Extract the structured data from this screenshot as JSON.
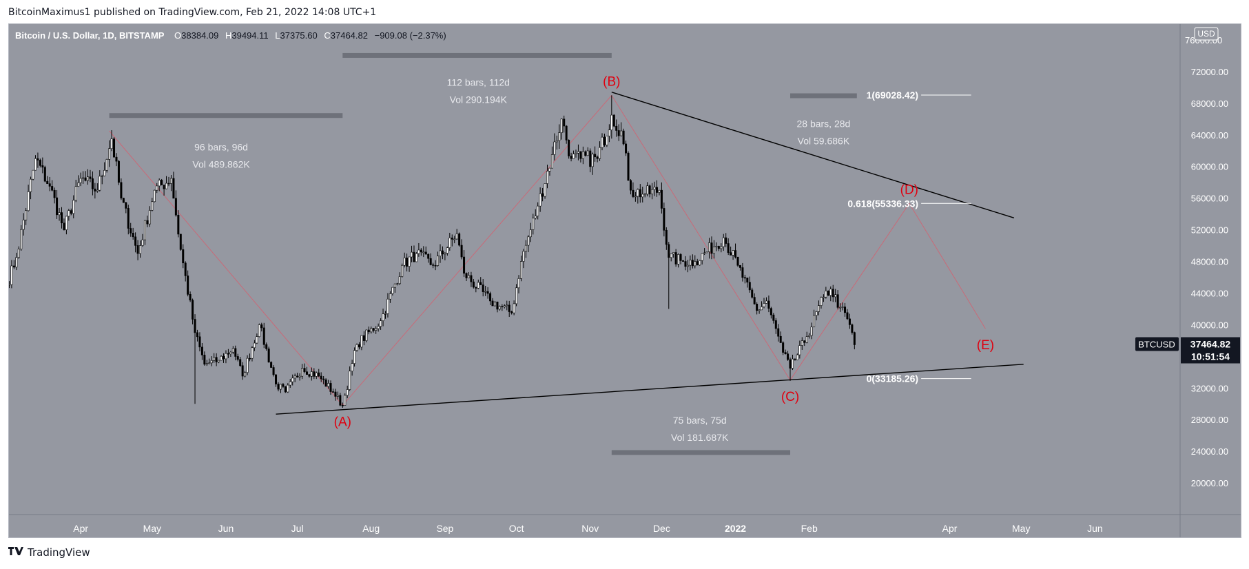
{
  "header": {
    "published_line": "BitcoinMaximus1 published on TradingView.com, Feb 21, 2022 14:08 UTC+1"
  },
  "footer": {
    "brand": "TradingView",
    "logo_icon": "tradingview-logo-icon"
  },
  "colors": {
    "plot_bg": "#9598a1",
    "axis_bg": "#9598a1",
    "candle": "#000000",
    "wave_label": "#e0000f",
    "wave_path": "#c96a78",
    "trendline": "#000000",
    "measure_bar": "#6e717a",
    "measure_text": "#e9eaee",
    "fib_text": "#ffffff",
    "price_tag_bg": "#131722"
  },
  "chart_data": {
    "type": "candlestick",
    "symbol_line": "Bitcoin / U.S. Dollar, 1D, BITSTAMP",
    "ohlc": {
      "o_label": "O",
      "o": "38384.09",
      "h_label": "H",
      "h": "39494.11",
      "l_label": "L",
      "l": "37375.60",
      "c_label": "C",
      "c": "37464.82",
      "change": "−909.08 (−2.37%)"
    },
    "currency_badge": "USD",
    "y_axis": {
      "min": 16000,
      "max": 78000,
      "ticks": [
        "72000.00",
        "68000.00",
        "64000.00",
        "60000.00",
        "56000.00",
        "52000.00",
        "48000.00",
        "44000.00",
        "40000.00",
        "36000.00",
        "32000.00",
        "28000.00",
        "24000.00",
        "20000.00"
      ],
      "top_tick_clipped": "76000.00"
    },
    "x_axis": {
      "start": "2021-03-01",
      "end": "2022-06-30",
      "ticks": [
        {
          "label": "Apr",
          "date": "2021-04-01",
          "bold": false
        },
        {
          "label": "May",
          "date": "2021-05-01",
          "bold": false
        },
        {
          "label": "Jun",
          "date": "2021-06-01",
          "bold": false
        },
        {
          "label": "Jul",
          "date": "2021-07-01",
          "bold": false
        },
        {
          "label": "Aug",
          "date": "2021-08-01",
          "bold": false
        },
        {
          "label": "Sep",
          "date": "2021-09-01",
          "bold": false
        },
        {
          "label": "Oct",
          "date": "2021-10-01",
          "bold": false
        },
        {
          "label": "Nov",
          "date": "2021-11-01",
          "bold": false
        },
        {
          "label": "Dec",
          "date": "2021-12-01",
          "bold": false
        },
        {
          "label": "2022",
          "date": "2022-01-01",
          "bold": true
        },
        {
          "label": "Feb",
          "date": "2022-02-01",
          "bold": false
        },
        {
          "label": "Apr",
          "date": "2022-04-01",
          "bold": false
        },
        {
          "label": "May",
          "date": "2022-05-01",
          "bold": false
        },
        {
          "label": "Jun",
          "date": "2022-06-01",
          "bold": false
        }
      ]
    },
    "price_series_start": "2021-03-01",
    "price_anchors": [
      [
        "2021-03-01",
        45000
      ],
      [
        "2021-03-05",
        48500
      ],
      [
        "2021-03-13",
        61000
      ],
      [
        "2021-03-19",
        57500
      ],
      [
        "2021-03-25",
        52000
      ],
      [
        "2021-04-01",
        58500
      ],
      [
        "2021-04-08",
        57000
      ],
      [
        "2021-04-14",
        63500
      ],
      [
        "2021-04-18",
        56000
      ],
      [
        "2021-04-25",
        49000
      ],
      [
        "2021-05-02",
        57000
      ],
      [
        "2021-05-09",
        58500
      ],
      [
        "2021-05-13",
        49500
      ],
      [
        "2021-05-19",
        39000
      ],
      [
        "2021-05-23",
        35000
      ],
      [
        "2021-05-29",
        35500
      ],
      [
        "2021-06-04",
        37000
      ],
      [
        "2021-06-08",
        33500
      ],
      [
        "2021-06-15",
        40000
      ],
      [
        "2021-06-22",
        32500
      ],
      [
        "2021-06-26",
        31500
      ],
      [
        "2021-07-03",
        34500
      ],
      [
        "2021-07-10",
        33500
      ],
      [
        "2021-07-16",
        31500
      ],
      [
        "2021-07-20",
        29800
      ],
      [
        "2021-07-26",
        37500
      ],
      [
        "2021-08-05",
        40500
      ],
      [
        "2021-08-14",
        47500
      ],
      [
        "2021-08-20",
        49000
      ],
      [
        "2021-08-27",
        47500
      ],
      [
        "2021-09-06",
        51500
      ],
      [
        "2021-09-09",
        46500
      ],
      [
        "2021-09-20",
        43000
      ],
      [
        "2021-09-29",
        41500
      ],
      [
        "2021-10-03",
        48000
      ],
      [
        "2021-10-10",
        55000
      ],
      [
        "2021-10-16",
        61500
      ],
      [
        "2021-10-20",
        66000
      ],
      [
        "2021-10-24",
        61000
      ],
      [
        "2021-10-28",
        61000
      ],
      [
        "2021-11-04",
        61000
      ],
      [
        "2021-11-10",
        66500
      ],
      [
        "2021-11-14",
        64500
      ],
      [
        "2021-11-18",
        57000
      ],
      [
        "2021-11-24",
        56500
      ],
      [
        "2021-11-30",
        57000
      ],
      [
        "2021-12-04",
        48500
      ],
      [
        "2021-12-10",
        48000
      ],
      [
        "2021-12-15",
        48000
      ],
      [
        "2021-12-27",
        51000
      ],
      [
        "2022-01-02",
        47500
      ],
      [
        "2022-01-10",
        41800
      ],
      [
        "2022-01-14",
        43000
      ],
      [
        "2022-01-21",
        36500
      ],
      [
        "2022-01-24",
        34500
      ],
      [
        "2022-01-31",
        38500
      ],
      [
        "2022-02-07",
        43500
      ],
      [
        "2022-02-10",
        44500
      ],
      [
        "2022-02-14",
        42200
      ],
      [
        "2022-02-18",
        40000
      ],
      [
        "2022-02-20",
        37465
      ]
    ],
    "wicks": [
      {
        "date": "2021-05-19",
        "low": 30000
      },
      {
        "date": "2021-12-04",
        "low": 42000
      },
      {
        "date": "2022-01-24",
        "low": 32900
      },
      {
        "date": "2021-11-10",
        "high": 69000
      }
    ],
    "wave_points": [
      {
        "label": "(A)",
        "date": "2021-07-20",
        "price": 29800,
        "label_pos": "below"
      },
      {
        "label": "(B)",
        "date": "2021-11-10",
        "price": 69000,
        "label_pos": "above"
      },
      {
        "label": "(C)",
        "date": "2022-01-24",
        "price": 33000,
        "label_pos": "below"
      },
      {
        "label": "(D)",
        "date": "2022-03-15",
        "price": 55336,
        "label_pos": "above"
      },
      {
        "label": "(E)",
        "date": "2022-04-16",
        "price": 39500,
        "label_pos": "below"
      }
    ],
    "wave_path_start": {
      "date": "2021-04-13",
      "price": 64500
    },
    "trendlines": [
      {
        "name": "upper-resistance",
        "from": {
          "date": "2021-11-10",
          "price": 69400
        },
        "to": {
          "date": "2022-04-28",
          "price": 53500
        }
      },
      {
        "name": "lower-support",
        "from": {
          "date": "2021-06-22",
          "price": 28700
        },
        "to": {
          "date": "2022-05-02",
          "price": 35000
        }
      }
    ],
    "measurements": [
      {
        "name": "measure-apr-jul",
        "bar_from": "2021-04-13",
        "bar_to": "2021-07-20",
        "bar_price": 66400,
        "bars": "96 bars, 96d",
        "vol": "Vol 489.862K",
        "text_price": 62000,
        "text_date": "2021-05-30"
      },
      {
        "name": "measure-jul-nov",
        "bar_from": "2021-07-20",
        "bar_to": "2021-11-10",
        "bar_price": 74000,
        "bars": "112 bars, 112d",
        "vol": "Vol 290.194K",
        "text_price": 70200,
        "text_date": "2021-09-15"
      },
      {
        "name": "measure-nov-jan",
        "bar_from": "2021-11-10",
        "bar_to": "2022-01-24",
        "bar_price": 23800,
        "bars": "75 bars, 75d",
        "vol": "Vol 181.687K",
        "text_price": 27500,
        "text_date": "2021-12-17"
      },
      {
        "name": "measure-jan-feb",
        "bar_from": "2022-01-24",
        "bar_to": "2022-02-21",
        "bar_price": 68900,
        "bars": "28 bars, 28d",
        "vol": "Vol 59.686K",
        "text_price": 65000,
        "text_date": "2022-02-07"
      }
    ],
    "fib_levels": [
      {
        "label": "1(69028.42)",
        "price": 69028.42
      },
      {
        "label": "0.618(55336.33)",
        "price": 55336.33
      },
      {
        "label": "0(33185.26)",
        "price": 33185.26
      }
    ],
    "fib_line_dates": [
      "2022-03-20",
      "2022-04-10"
    ],
    "price_tag": {
      "symbol": "BTCUSD",
      "price": "37464.82",
      "countdown": "10:51:54",
      "value": 37464.82
    }
  }
}
